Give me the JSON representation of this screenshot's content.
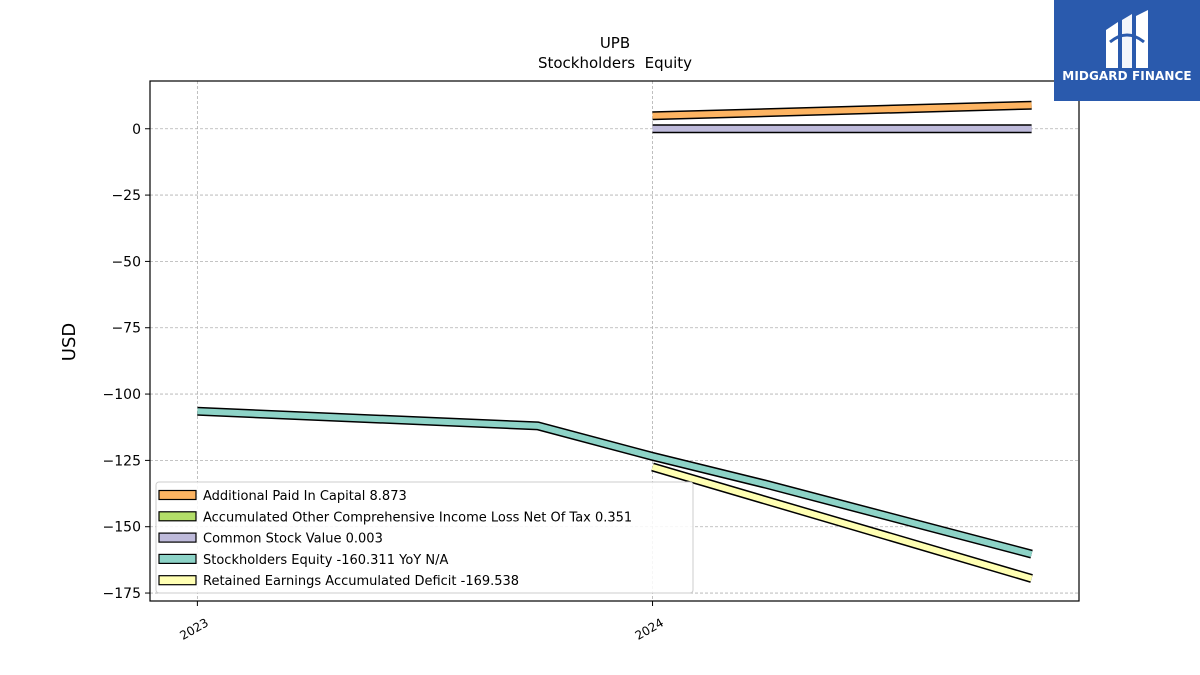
{
  "brand": {
    "name": "MIDGARD FINANCE",
    "icon": "midgard-logo-icon",
    "bg_color": "#2a5aad"
  },
  "chart_data": {
    "type": "line",
    "title": "UPB",
    "subtitle": "Stockholders  Equity",
    "ylabel": "USD",
    "xlabel": "",
    "ylim": [
      -178,
      18
    ],
    "xlim": [
      "2022-11-24",
      "2024-12-08"
    ],
    "yticks": [
      0,
      -25,
      -50,
      -75,
      -100,
      -125,
      -150,
      -175
    ],
    "ytick_labels": [
      "0",
      "−25",
      "−50",
      "−75",
      "−100",
      "−125",
      "−150",
      "−175"
    ],
    "xticks": [
      "2023-01-01",
      "2024-01-01"
    ],
    "xtick_labels": [
      "2023",
      "2024"
    ],
    "grid": true,
    "legend_placement": "lower-left",
    "series": [
      {
        "name": "Additional Paid In Capital",
        "legend": "Additional Paid In Capital  8.873",
        "color": "#fdb462",
        "x": [
          "2024-01-01",
          "2024-10-31"
        ],
        "y": [
          4.9,
          8.873
        ]
      },
      {
        "name": "Accumulated Other Comprehensive Income Loss Net Of Tax",
        "legend": "Accumulated Other Comprehensive Income Loss Net Of Tax  0.351",
        "color": "#b3de69",
        "x": [],
        "y": []
      },
      {
        "name": "Common Stock Value",
        "legend": "Common Stock Value  0.003",
        "color": "#bebada",
        "x": [
          "2024-01-01",
          "2024-10-31"
        ],
        "y": [
          0.003,
          0.003
        ]
      },
      {
        "name": "Stockholders Equity",
        "legend": "Stockholders Equity  -160.311 YoY N/A",
        "color": "#8dd3c7",
        "x": [
          "2023-01-01",
          "2023-10-01",
          "2024-01-01",
          "2024-04-01",
          "2024-10-31"
        ],
        "y": [
          -106.5,
          -112,
          -123.5,
          -134,
          -160.311
        ]
      },
      {
        "name": "Retained Earnings Accumulated Deficit",
        "legend": "Retained Earnings Accumulated Deficit  -169.538",
        "color": "#ffffb3",
        "x": [
          "2024-01-01",
          "2024-10-31"
        ],
        "y": [
          -127.5,
          -169.538
        ]
      }
    ]
  }
}
